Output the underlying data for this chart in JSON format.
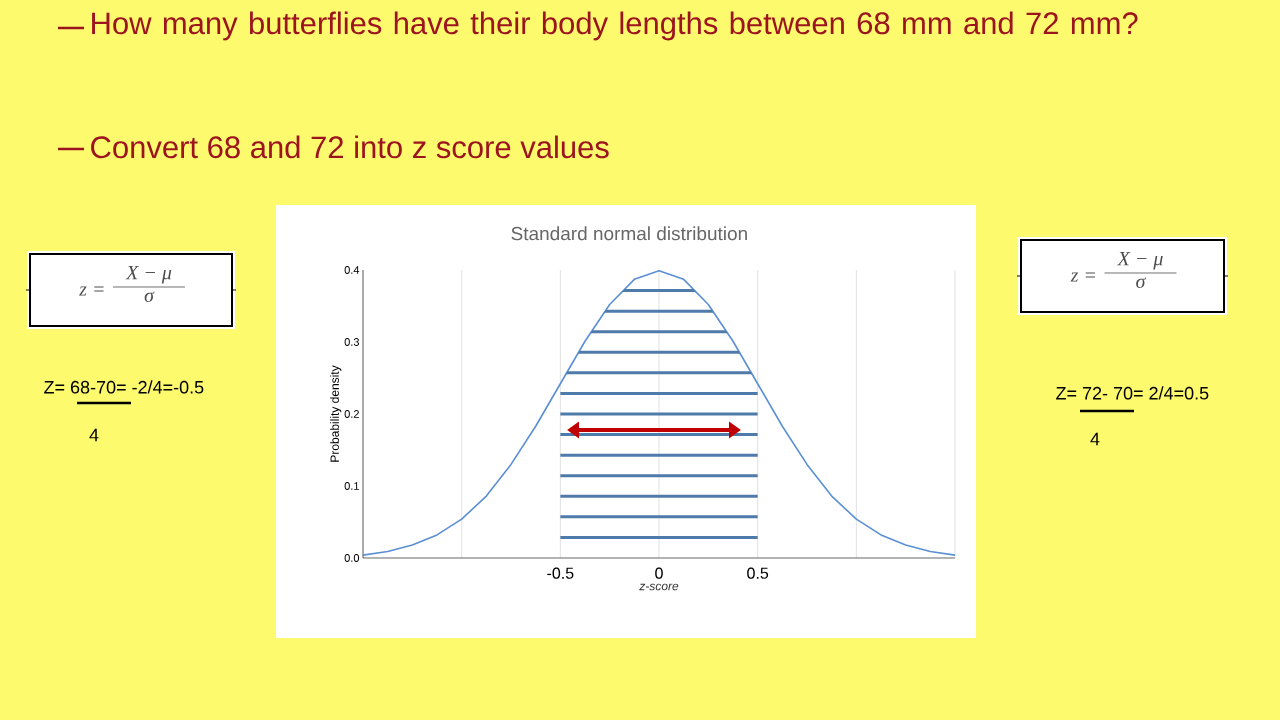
{
  "chart_data": {
    "type": "line",
    "title": "Standard normal distribution",
    "xlabel": "z-score",
    "ylabel": "Probability density",
    "x": [
      -1.5,
      -1.375,
      -1.25,
      -1.125,
      -1,
      -0.875,
      -0.75,
      -0.625,
      -0.5,
      -0.375,
      -0.25,
      -0.125,
      0,
      0.125,
      0.25,
      0.375,
      0.5,
      0.625,
      0.75,
      0.875,
      1,
      1.125,
      1.25,
      1.375,
      1.5
    ],
    "series": [
      {
        "color": "#5b8fd4",
        "values": [
          0.004,
          0.009,
          0.018,
          0.032,
          0.054,
          0.086,
          0.13,
          0.183,
          0.242,
          0.301,
          0.352,
          0.387,
          0.399,
          0.387,
          0.352,
          0.301,
          0.242,
          0.183,
          0.13,
          0.086,
          0.054,
          0.032,
          0.018,
          0.009,
          0.004
        ]
      }
    ],
    "xlim": [
      -1.5,
      1.5
    ],
    "xticks": [
      {
        "value": -1.5,
        "label": null
      },
      {
        "value": -1,
        "label": null
      },
      -0.5,
      0,
      0.5,
      {
        "value": 1,
        "label": null
      },
      {
        "value": 1.5,
        "label": null
      }
    ],
    "ylim": [
      0,
      0.4
    ],
    "yticks": [
      {
        "value": 0,
        "label": "0.0"
      },
      0.1,
      0.2,
      0.3,
      0.4
    ],
    "grid": "x",
    "annotations": [
      "How many butterflies have their body lengths between 68 mm and 72 mm?",
      "Convert 68 and 72 into z score values",
      "z =",
      "X − μ",
      "σ",
      "Z= 68-70= -2/4=-0.5",
      "4",
      "z =",
      "X − μ",
      "σ",
      "Z= 72- 70= 2/4=0.5",
      "4"
    ]
  }
}
